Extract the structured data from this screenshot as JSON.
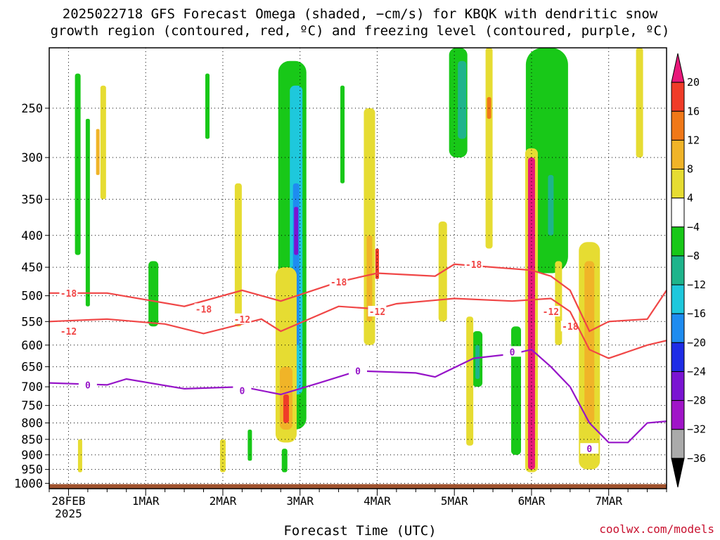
{
  "title_line1": "2025022718 GFS Forecast Omega (shaded, −cm/s) for KBQK with dendritic snow",
  "title_line2": "growth region (contoured, red, ºC) and freezing level (contoured, purple, ºC)",
  "credit": "coolwx.com/models",
  "chart_data": {
    "type": "heatmap",
    "xlabel": "Forecast Time (UTC)",
    "x_ticks": [
      "28FEB\n2025",
      "1MAR",
      "2MAR",
      "3MAR",
      "4MAR",
      "5MAR",
      "6MAR",
      "7MAR"
    ],
    "x_range_days": [
      "2025-02-27 18Z",
      "2025-03-07 18Z"
    ],
    "y_ticks": [
      250,
      300,
      350,
      400,
      450,
      500,
      550,
      600,
      650,
      700,
      750,
      800,
      850,
      900,
      950,
      1000
    ],
    "y_range_hpa": [
      200,
      1020
    ],
    "y_scale": "log-pressure",
    "grid": true,
    "colorbar": {
      "labels": [
        "20",
        "16",
        "12",
        "8",
        "4",
        "−4",
        "−8",
        "−12",
        "−16",
        "−20",
        "−24",
        "−28",
        "−32",
        "−36"
      ],
      "colors": [
        "#e8187a",
        "#f03c28",
        "#f07818",
        "#f0b428",
        "#e6dc32",
        "#ffffff",
        "#18c818",
        "#1eb48c",
        "#1ec8dc",
        "#1e8cf0",
        "#1e2ce6",
        "#7a14d2",
        "#a014c8",
        "#aaaaaa",
        "#000000"
      ]
    },
    "contours": [
      {
        "name": "-18",
        "color": "#f04646",
        "points": [
          [
            "2025-02-27 18Z",
            495
          ],
          [
            "2025-02-28 12Z",
            495
          ],
          [
            "2025-03-01 12Z",
            520
          ],
          [
            "2025-03-02 06Z",
            490
          ],
          [
            "2025-03-02 18Z",
            510
          ],
          [
            "2025-03-03 12Z",
            475
          ],
          [
            "2025-03-04 00Z",
            460
          ],
          [
            "2025-03-04 18Z",
            465
          ],
          [
            "2025-03-05 00Z",
            445
          ],
          [
            "2025-03-06 00Z",
            455
          ],
          [
            "2025-03-06 06Z",
            465
          ],
          [
            "2025-03-06 12Z",
            490
          ],
          [
            "2025-03-06 18Z",
            570
          ],
          [
            "2025-03-07 00Z",
            550
          ],
          [
            "2025-03-07 12Z",
            545
          ],
          [
            "2025-03-07 18Z",
            490
          ]
        ],
        "labels": [
          [
            "2025-02-28 00Z",
            495
          ],
          [
            "2025-03-01 18Z",
            525
          ],
          [
            "2025-03-03 12Z",
            475
          ],
          [
            "2025-03-05 06Z",
            445
          ],
          [
            "2025-03-06 12Z",
            560
          ]
        ]
      },
      {
        "name": "-12",
        "color": "#f04646",
        "points": [
          [
            "2025-02-27 18Z",
            550
          ],
          [
            "2025-02-28 12Z",
            545
          ],
          [
            "2025-03-01 06Z",
            555
          ],
          [
            "2025-03-01 18Z",
            575
          ],
          [
            "2025-03-02 12Z",
            545
          ],
          [
            "2025-03-02 18Z",
            570
          ],
          [
            "2025-03-03 12Z",
            520
          ],
          [
            "2025-03-04 00Z",
            525
          ],
          [
            "2025-03-04 06Z",
            515
          ],
          [
            "2025-03-05 00Z",
            505
          ],
          [
            "2025-03-05 18Z",
            510
          ],
          [
            "2025-03-06 06Z",
            505
          ],
          [
            "2025-03-06 12Z",
            530
          ],
          [
            "2025-03-06 18Z",
            610
          ],
          [
            "2025-03-07 00Z",
            630
          ],
          [
            "2025-03-07 12Z",
            600
          ],
          [
            "2025-03-07 18Z",
            590
          ]
        ],
        "labels": [
          [
            "2025-02-28 00Z",
            570
          ],
          [
            "2025-03-02 06Z",
            545
          ],
          [
            "2025-03-04 00Z",
            530
          ],
          [
            "2025-03-06 06Z",
            530
          ]
        ]
      },
      {
        "name": "0",
        "color": "#9614c8",
        "points": [
          [
            "2025-02-27 18Z",
            690
          ],
          [
            "2025-02-28 12Z",
            695
          ],
          [
            "2025-02-28 18Z",
            680
          ],
          [
            "2025-03-01 12Z",
            705
          ],
          [
            "2025-03-02 06Z",
            700
          ],
          [
            "2025-03-02 18Z",
            720
          ],
          [
            "2025-03-03 06Z",
            690
          ],
          [
            "2025-03-03 18Z",
            660
          ],
          [
            "2025-03-04 12Z",
            665
          ],
          [
            "2025-03-04 18Z",
            675
          ],
          [
            "2025-03-05 06Z",
            630
          ],
          [
            "2025-03-05 18Z",
            620
          ],
          [
            "2025-03-06 00Z",
            610
          ],
          [
            "2025-03-06 06Z",
            650
          ],
          [
            "2025-03-06 12Z",
            700
          ],
          [
            "2025-03-06 18Z",
            800
          ],
          [
            "2025-03-07 00Z",
            860
          ],
          [
            "2025-03-07 06Z",
            860
          ],
          [
            "2025-03-07 12Z",
            800
          ],
          [
            "2025-03-07 18Z",
            795
          ]
        ],
        "labels": [
          [
            "2025-02-28 06Z",
            695
          ],
          [
            "2025-03-02 06Z",
            710
          ],
          [
            "2025-03-03 18Z",
            660
          ],
          [
            "2025-03-05 18Z",
            615
          ],
          [
            "2025-03-06 18Z",
            880
          ]
        ]
      }
    ]
  }
}
